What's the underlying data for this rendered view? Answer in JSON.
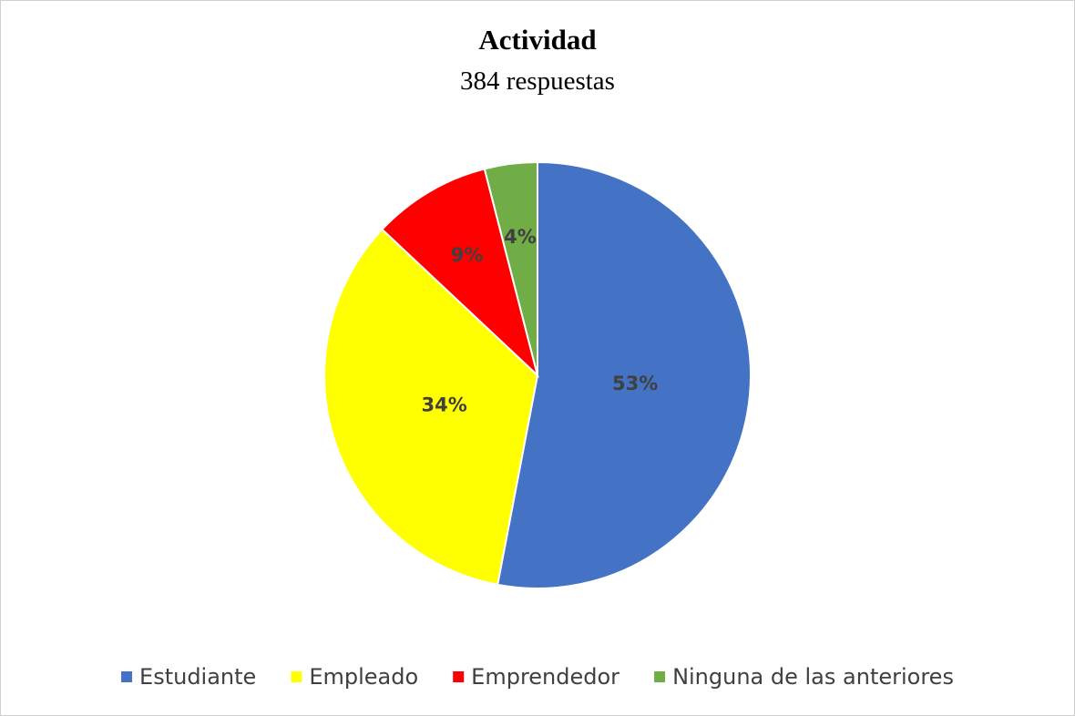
{
  "chart_data": {
    "type": "pie",
    "title": "Actividad",
    "subtitle": "384 respuestas",
    "categories": [
      "Estudiante",
      "Empleado",
      "Emprendedor",
      "Ninguna de las anteriores"
    ],
    "values": [
      53,
      34,
      9,
      4
    ],
    "value_labels": [
      "53%",
      "34%",
      "9%",
      "4%"
    ],
    "colors": [
      "#4472c4",
      "#ffff00",
      "#ff0000",
      "#70ad47"
    ],
    "legend": "bottom"
  }
}
